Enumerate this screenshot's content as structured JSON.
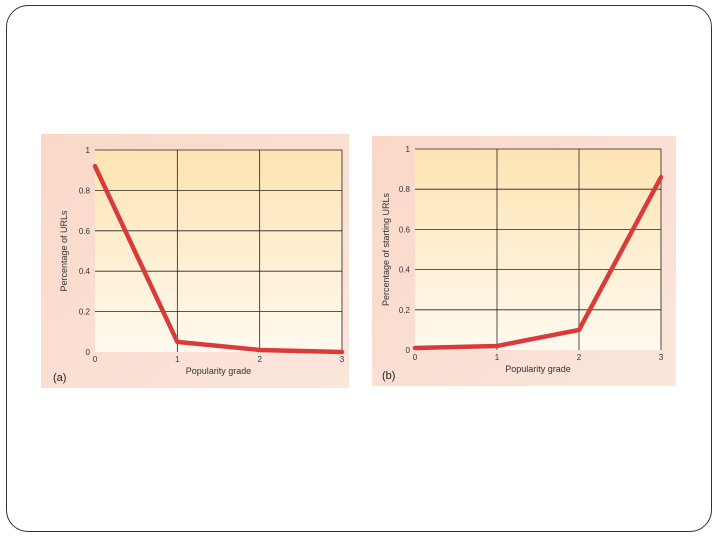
{
  "chart_data": [
    {
      "type": "line",
      "panel_label": "(a)",
      "xlabel": "Popularity grade",
      "ylabel": "Percentage of URLs",
      "x": [
        0,
        1,
        2,
        3
      ],
      "series": [
        {
          "values": [
            0.92,
            0.05,
            0.01,
            0.0
          ]
        }
      ],
      "xlim": [
        0,
        3
      ],
      "ylim": [
        0,
        1
      ],
      "xticks": [
        "0",
        "1",
        "2",
        "3"
      ],
      "yticks": [
        "0",
        "0.2",
        "0.4",
        "0.6",
        "0.8",
        "1"
      ],
      "grid": true,
      "line_color": "#d93a3a"
    },
    {
      "type": "line",
      "panel_label": "(b)",
      "xlabel": "Popularity grade",
      "ylabel": "Percentage of starting URLs",
      "x": [
        0,
        1,
        2,
        3
      ],
      "series": [
        {
          "values": [
            0.01,
            0.02,
            0.1,
            0.86
          ]
        }
      ],
      "xlim": [
        0,
        3
      ],
      "ylim": [
        0,
        1
      ],
      "xticks": [
        "0",
        "1",
        "2",
        "3"
      ],
      "yticks": [
        "0",
        "0.2",
        "0.4",
        "0.6",
        "0.8",
        "1"
      ],
      "grid": true,
      "line_color": "#d93a3a"
    }
  ]
}
